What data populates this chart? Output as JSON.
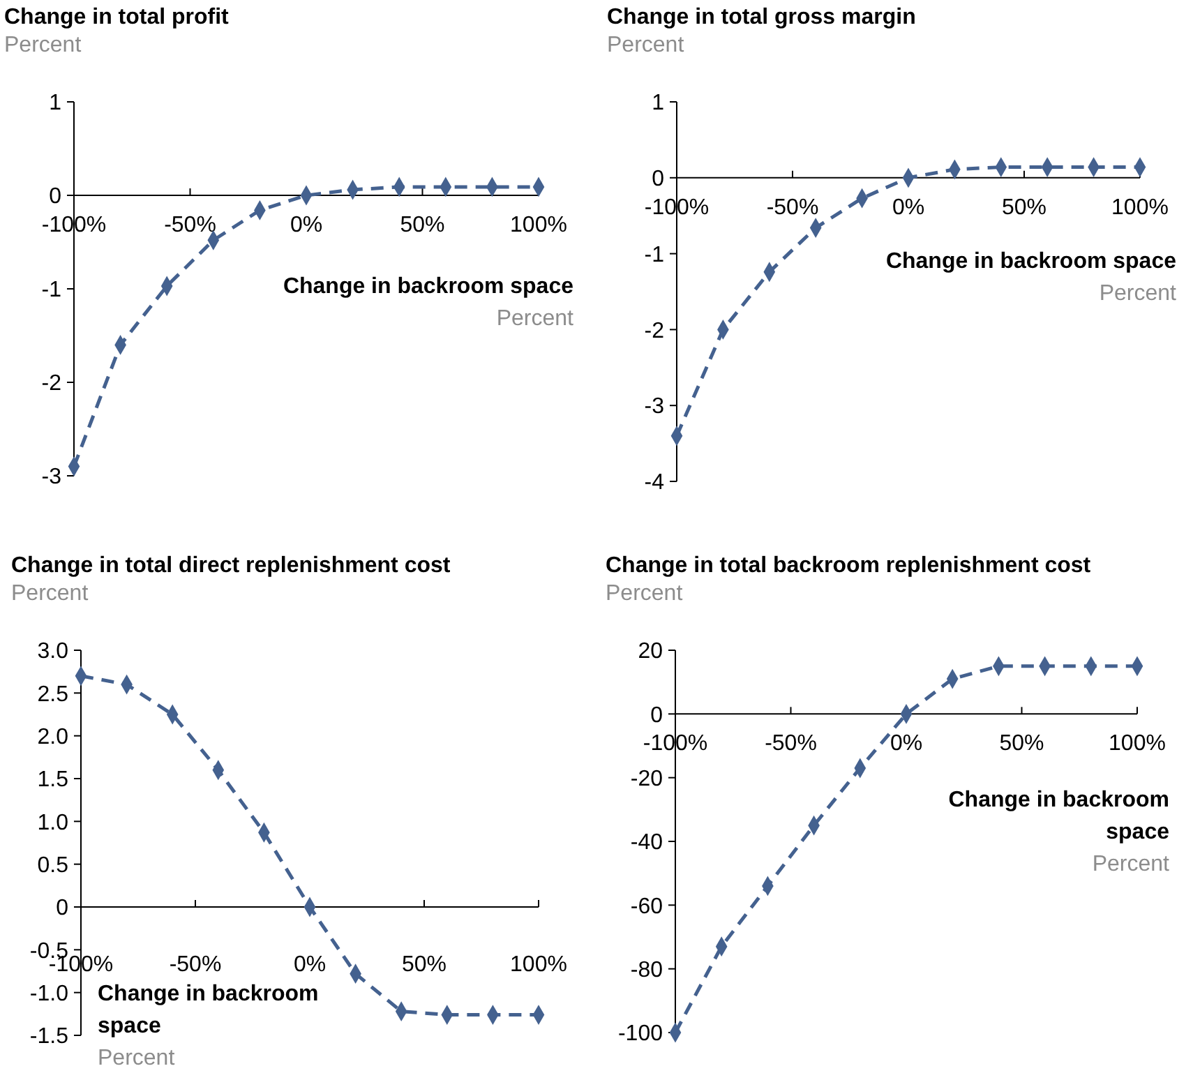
{
  "chart_data": [
    {
      "type": "line",
      "title": "Change in total profit",
      "subtitle": "Percent",
      "xlabel": "Change in backroom space",
      "annotations": [
        "Percent"
      ],
      "x": [
        -100,
        -80,
        -60,
        -40,
        -20,
        0,
        20,
        40,
        60,
        80,
        100
      ],
      "series": [
        {
          "color": "#44618f",
          "values": [
            -2.9,
            -1.6,
            -0.97,
            -0.48,
            -0.16,
            0,
            0.06,
            0.09,
            0.09,
            0.09,
            0.09
          ]
        }
      ],
      "xlim": [
        -100,
        100
      ],
      "xticks": [
        {
          "value": -100,
          "label": "-100%"
        },
        {
          "value": -50,
          "label": "-50%"
        },
        {
          "value": 0,
          "label": "0%"
        },
        {
          "value": 50,
          "label": "50%"
        },
        {
          "value": 100,
          "label": "100%"
        }
      ],
      "ylim": [
        -3,
        1
      ],
      "yticks": [
        -3,
        -2,
        -1,
        0,
        1
      ],
      "marker": "diamond",
      "line_style": "dashed"
    },
    {
      "type": "line",
      "title": "Change in total gross margin",
      "subtitle": "Percent",
      "xlabel": "Change in backroom space",
      "annotations": [
        "Percent"
      ],
      "x": [
        -100,
        -80,
        -60,
        -40,
        -20,
        0,
        20,
        40,
        60,
        80,
        100
      ],
      "series": [
        {
          "color": "#44618f",
          "values": [
            -3.4,
            -2,
            -1.24,
            -0.66,
            -0.27,
            0,
            0.11,
            0.14,
            0.14,
            0.14,
            0.14
          ]
        }
      ],
      "xlim": [
        -100,
        100
      ],
      "xticks": [
        {
          "value": -100,
          "label": "-100%"
        },
        {
          "value": -50,
          "label": "-50%"
        },
        {
          "value": 0,
          "label": "0%"
        },
        {
          "value": 50,
          "label": "50%"
        },
        {
          "value": 100,
          "label": "100%"
        }
      ],
      "ylim": [
        -4,
        1
      ],
      "yticks": [
        -4,
        -3,
        -2,
        -1,
        0,
        1
      ],
      "marker": "diamond",
      "line_style": "dashed"
    },
    {
      "type": "line",
      "title": "Change in total direct replenishment cost",
      "subtitle": "Percent",
      "xlabel": "Change in backroom space",
      "annotations": [
        "Percent"
      ],
      "x": [
        -100,
        -80,
        -60,
        -40,
        -20,
        0,
        20,
        40,
        60,
        80,
        100
      ],
      "series": [
        {
          "color": "#44618f",
          "values": [
            2.7,
            2.6,
            2.25,
            1.6,
            0.87,
            0,
            -0.78,
            -1.22,
            -1.26,
            -1.26,
            -1.26
          ]
        }
      ],
      "xlim": [
        -100,
        100
      ],
      "xticks": [
        {
          "value": -100,
          "label": "-100%"
        },
        {
          "value": -50,
          "label": "-50%"
        },
        {
          "value": 0,
          "label": "0%"
        },
        {
          "value": 50,
          "label": "50%"
        },
        {
          "value": 100,
          "label": "100%"
        }
      ],
      "ylim": [
        -1.5,
        3
      ],
      "yticks": [
        -1.5,
        {
          "value": -1,
          "label": "-1.0"
        },
        -0.5,
        0,
        0.5,
        {
          "value": 1,
          "label": "1.0"
        },
        1.5,
        {
          "value": 2,
          "label": "2.0"
        },
        2.5,
        {
          "value": 3,
          "label": "3.0"
        }
      ],
      "marker": "diamond",
      "line_style": "dashed"
    },
    {
      "type": "line",
      "title": "Change in total backroom replenishment cost",
      "subtitle": "Percent",
      "xlabel": "Change in backroom space",
      "annotations": [
        "Percent"
      ],
      "x": [
        -100,
        -80,
        -60,
        -40,
        -20,
        0,
        20,
        40,
        60,
        80,
        100
      ],
      "series": [
        {
          "color": "#44618f",
          "values": [
            -100,
            -73,
            -54,
            -35,
            -17,
            0,
            11,
            15,
            15,
            15,
            15
          ]
        }
      ],
      "xlim": [
        -100,
        100
      ],
      "xticks": [
        {
          "value": -100,
          "label": "-100%"
        },
        {
          "value": -50,
          "label": "-50%"
        },
        {
          "value": 0,
          "label": "0%"
        },
        {
          "value": 50,
          "label": "50%"
        },
        {
          "value": 100,
          "label": "100%"
        }
      ],
      "ylim": [
        -100,
        20
      ],
      "yticks": [
        -100,
        -80,
        -60,
        -40,
        -20,
        0,
        20
      ],
      "marker": "diamond",
      "line_style": "dashed"
    }
  ]
}
